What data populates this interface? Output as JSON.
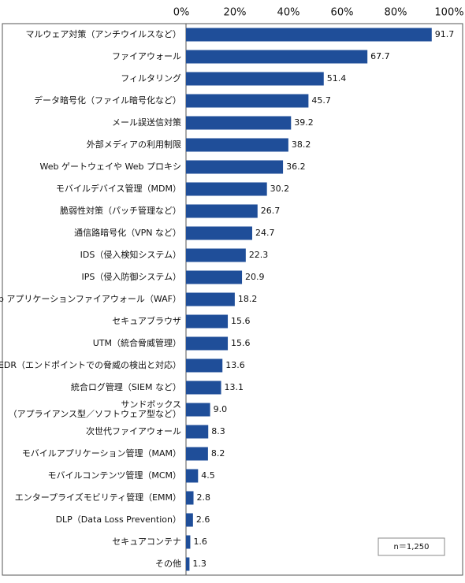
{
  "chart_data": {
    "type": "bar",
    "orientation": "horizontal",
    "categories": [
      "マルウェア対策（アンチウイルスなど）",
      "ファイアウォール",
      "フィルタリング",
      "データ暗号化（ファイル暗号化など）",
      "メール誤送信対策",
      "外部メディアの利用制限",
      "Web ゲートウェイや Web プロキシ",
      "モバイルデバイス管理（MDM）",
      "脆弱性対策（パッチ管理など）",
      "通信路暗号化（VPN など）",
      "IDS（侵入検知システム）",
      "IPS（侵入防御システム）",
      "Web アプリケーションファイアウォール（WAF）",
      "セキュアブラウザ",
      "UTM（統合脅威管理）",
      "EDR（エンドポイントでの脅威の検出と対応）",
      "統合ログ管理（SIEM など）",
      "サンドボックス\n（アプライアンス型／ソフトウェア型など）",
      "次世代ファイアウォール",
      "モバイルアプリケーション管理（MAM）",
      "モバイルコンテンツ管理（MCM）",
      "エンタープライズモビリティ管理（EMM）",
      "DLP（Data Loss Prevention）",
      "セキュアコンテナ",
      "その他"
    ],
    "values": [
      91.7,
      67.7,
      51.4,
      45.7,
      39.2,
      38.2,
      36.2,
      30.2,
      26.7,
      24.7,
      22.3,
      20.9,
      18.2,
      15.6,
      15.6,
      13.6,
      13.1,
      9.0,
      8.3,
      8.2,
      4.5,
      2.8,
      2.6,
      1.6,
      1.3
    ],
    "value_labels": [
      "91.7",
      "67.7",
      "51.4",
      "45.7",
      "39.2",
      "38.2",
      "36.2",
      "30.2",
      "26.7",
      "24.7",
      "22.3",
      "20.9",
      "18.2",
      "15.6",
      "15.6",
      "13.6",
      "13.1",
      "9.0",
      "8.3",
      "8.2",
      "4.5",
      "2.8",
      "2.6",
      "1.6",
      "1.3"
    ],
    "color": "#1f4e99",
    "xlim": [
      0,
      100
    ],
    "xticks": [
      {
        "value": 0,
        "label": "0%"
      },
      {
        "value": 20,
        "label": "20%"
      },
      {
        "value": 40,
        "label": "40%"
      },
      {
        "value": 60,
        "label": "60%"
      },
      {
        "value": 80,
        "label": "80%"
      },
      {
        "value": 100,
        "label": "100%"
      }
    ],
    "grid": false,
    "annotation": "n＝1,250"
  }
}
